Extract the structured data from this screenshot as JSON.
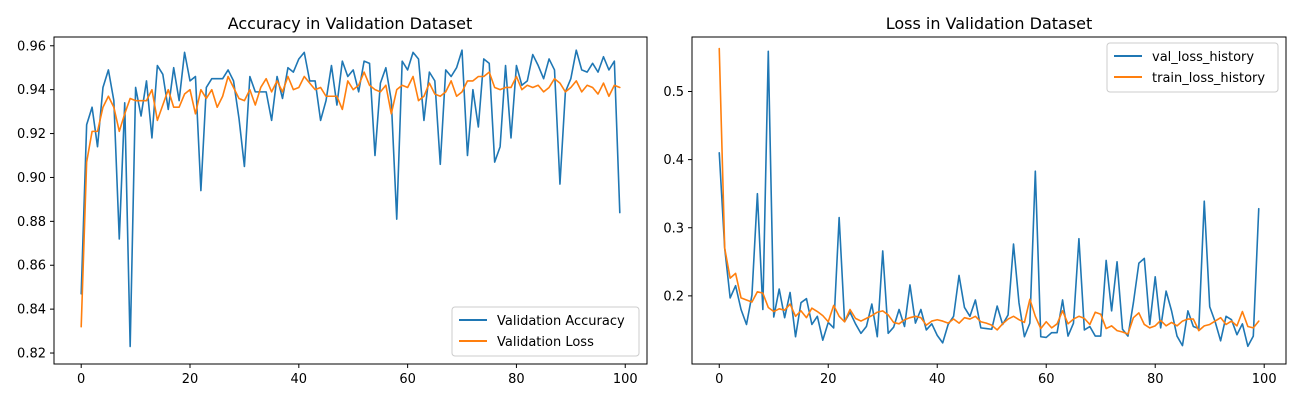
{
  "chart_data": [
    {
      "type": "line",
      "title": "Accuracy in Validation Dataset",
      "xlabel": "",
      "ylabel": "",
      "xlim": [
        -5,
        104
      ],
      "ylim": [
        0.815,
        0.964
      ],
      "xticks": [
        0,
        20,
        40,
        60,
        80,
        100
      ],
      "xtick_labels": [
        "0",
        "20",
        "40",
        "60",
        "80",
        "100"
      ],
      "yticks": [
        0.82,
        0.84,
        0.86,
        0.88,
        0.9,
        0.92,
        0.94,
        0.96
      ],
      "ytick_labels": [
        "0.82",
        "0.84",
        "0.86",
        "0.88",
        "0.90",
        "0.92",
        "0.94",
        "0.96"
      ],
      "grid": false,
      "legend_position": "lower-right",
      "series": [
        {
          "name": "Validation Accuracy",
          "color": "#1f77b4",
          "x": [
            0,
            1,
            2,
            3,
            4,
            5,
            6,
            7,
            8,
            9,
            10,
            11,
            12,
            13,
            14,
            15,
            16,
            17,
            18,
            19,
            20,
            21,
            22,
            23,
            24,
            25,
            26,
            27,
            28,
            29,
            30,
            31,
            32,
            33,
            34,
            35,
            36,
            37,
            38,
            39,
            40,
            41,
            42,
            43,
            44,
            45,
            46,
            47,
            48,
            49,
            50,
            51,
            52,
            53,
            54,
            55,
            56,
            57,
            58,
            59,
            60,
            61,
            62,
            63,
            64,
            65,
            66,
            67,
            68,
            69,
            70,
            71,
            72,
            73,
            74,
            75,
            76,
            77,
            78,
            79,
            80,
            81,
            82,
            83,
            84,
            85,
            86,
            87,
            88,
            89,
            90,
            91,
            92,
            93,
            94,
            95,
            96,
            97,
            98,
            99
          ],
          "values": [
            0.847,
            0.924,
            0.932,
            0.914,
            0.941,
            0.949,
            0.935,
            0.872,
            0.934,
            0.823,
            0.941,
            0.928,
            0.944,
            0.918,
            0.951,
            0.947,
            0.931,
            0.95,
            0.935,
            0.957,
            0.944,
            0.946,
            0.894,
            0.941,
            0.945,
            0.945,
            0.945,
            0.949,
            0.944,
            0.927,
            0.905,
            0.946,
            0.939,
            0.939,
            0.939,
            0.926,
            0.946,
            0.936,
            0.95,
            0.948,
            0.954,
            0.957,
            0.944,
            0.944,
            0.926,
            0.935,
            0.951,
            0.933,
            0.953,
            0.946,
            0.949,
            0.939,
            0.953,
            0.952,
            0.91,
            0.943,
            0.95,
            0.935,
            0.881,
            0.953,
            0.949,
            0.957,
            0.954,
            0.926,
            0.948,
            0.944,
            0.906,
            0.949,
            0.946,
            0.95,
            0.958,
            0.91,
            0.94,
            0.923,
            0.954,
            0.952,
            0.907,
            0.914,
            0.951,
            0.918,
            0.951,
            0.942,
            0.944,
            0.956,
            0.951,
            0.945,
            0.954,
            0.949,
            0.897,
            0.939,
            0.945,
            0.958,
            0.949,
            0.948,
            0.952,
            0.948,
            0.955,
            0.949,
            0.953,
            0.884
          ]
        },
        {
          "name": "Validation Loss",
          "color": "#ff7f0e",
          "x": [
            0,
            1,
            2,
            3,
            4,
            5,
            6,
            7,
            8,
            9,
            10,
            11,
            12,
            13,
            14,
            15,
            16,
            17,
            18,
            19,
            20,
            21,
            22,
            23,
            24,
            25,
            26,
            27,
            28,
            29,
            30,
            31,
            32,
            33,
            34,
            35,
            36,
            37,
            38,
            39,
            40,
            41,
            42,
            43,
            44,
            45,
            46,
            47,
            48,
            49,
            50,
            51,
            52,
            53,
            54,
            55,
            56,
            57,
            58,
            59,
            60,
            61,
            62,
            63,
            64,
            65,
            66,
            67,
            68,
            69,
            70,
            71,
            72,
            73,
            74,
            75,
            76,
            77,
            78,
            79,
            80,
            81,
            82,
            83,
            84,
            85,
            86,
            87,
            88,
            89,
            90,
            91,
            92,
            93,
            94,
            95,
            96,
            97,
            98,
            99
          ],
          "values": [
            0.832,
            0.907,
            0.921,
            0.921,
            0.932,
            0.937,
            0.932,
            0.921,
            0.929,
            0.936,
            0.935,
            0.935,
            0.935,
            0.94,
            0.926,
            0.933,
            0.94,
            0.932,
            0.932,
            0.938,
            0.94,
            0.929,
            0.94,
            0.936,
            0.94,
            0.932,
            0.937,
            0.946,
            0.941,
            0.936,
            0.935,
            0.94,
            0.933,
            0.941,
            0.945,
            0.939,
            0.944,
            0.939,
            0.946,
            0.94,
            0.941,
            0.946,
            0.943,
            0.94,
            0.941,
            0.937,
            0.937,
            0.937,
            0.931,
            0.944,
            0.94,
            0.942,
            0.948,
            0.942,
            0.94,
            0.939,
            0.942,
            0.929,
            0.94,
            0.942,
            0.941,
            0.946,
            0.935,
            0.937,
            0.943,
            0.938,
            0.937,
            0.939,
            0.944,
            0.937,
            0.939,
            0.944,
            0.944,
            0.946,
            0.946,
            0.948,
            0.941,
            0.94,
            0.941,
            0.941,
            0.946,
            0.94,
            0.942,
            0.941,
            0.942,
            0.939,
            0.941,
            0.945,
            0.943,
            0.939,
            0.941,
            0.944,
            0.939,
            0.942,
            0.941,
            0.938,
            0.943,
            0.937,
            0.942,
            0.941
          ]
        }
      ]
    },
    {
      "type": "line",
      "title": "Loss in Validation Dataset",
      "xlabel": "",
      "ylabel": "",
      "xlim": [
        -5,
        104
      ],
      "ylim": [
        0.1,
        0.58
      ],
      "xticks": [
        0,
        20,
        40,
        60,
        80,
        100
      ],
      "xtick_labels": [
        "0",
        "20",
        "40",
        "60",
        "80",
        "100"
      ],
      "yticks": [
        0.2,
        0.3,
        0.4,
        0.5
      ],
      "ytick_labels": [
        "0.2",
        "0.3",
        "0.4",
        "0.5"
      ],
      "grid": false,
      "legend_position": "top-right",
      "series": [
        {
          "name": "val_loss_history",
          "color": "#1f77b4",
          "x": [
            0,
            1,
            2,
            3,
            4,
            5,
            6,
            7,
            8,
            9,
            10,
            11,
            12,
            13,
            14,
            15,
            16,
            17,
            18,
            19,
            20,
            21,
            22,
            23,
            24,
            25,
            26,
            27,
            28,
            29,
            30,
            31,
            32,
            33,
            34,
            35,
            36,
            37,
            38,
            39,
            40,
            41,
            42,
            43,
            44,
            45,
            46,
            47,
            48,
            49,
            50,
            51,
            52,
            53,
            54,
            55,
            56,
            57,
            58,
            59,
            60,
            61,
            62,
            63,
            64,
            65,
            66,
            67,
            68,
            69,
            70,
            71,
            72,
            73,
            74,
            75,
            76,
            77,
            78,
            79,
            80,
            81,
            82,
            83,
            84,
            85,
            86,
            87,
            88,
            89,
            90,
            91,
            92,
            93,
            94,
            95,
            96,
            97,
            98,
            99
          ],
          "values": [
            0.41,
            0.27,
            0.197,
            0.215,
            0.18,
            0.158,
            0.201,
            0.35,
            0.18,
            0.559,
            0.169,
            0.21,
            0.168,
            0.205,
            0.14,
            0.19,
            0.196,
            0.158,
            0.17,
            0.135,
            0.161,
            0.153,
            0.315,
            0.162,
            0.176,
            0.159,
            0.145,
            0.155,
            0.188,
            0.14,
            0.266,
            0.145,
            0.154,
            0.18,
            0.155,
            0.216,
            0.16,
            0.18,
            0.15,
            0.159,
            0.142,
            0.131,
            0.158,
            0.17,
            0.23,
            0.183,
            0.17,
            0.194,
            0.153,
            0.152,
            0.151,
            0.185,
            0.158,
            0.172,
            0.276,
            0.19,
            0.14,
            0.16,
            0.383,
            0.14,
            0.139,
            0.146,
            0.146,
            0.194,
            0.141,
            0.16,
            0.284,
            0.15,
            0.155,
            0.141,
            0.141,
            0.252,
            0.178,
            0.25,
            0.151,
            0.141,
            0.19,
            0.248,
            0.255,
            0.158,
            0.228,
            0.153,
            0.207,
            0.178,
            0.141,
            0.127,
            0.178,
            0.155,
            0.152,
            0.339,
            0.184,
            0.162,
            0.134,
            0.17,
            0.165,
            0.143,
            0.159,
            0.126,
            0.141,
            0.328
          ]
        },
        {
          "name": "train_loss_history",
          "color": "#ff7f0e",
          "x": [
            0,
            1,
            2,
            3,
            4,
            5,
            6,
            7,
            8,
            9,
            10,
            11,
            12,
            13,
            14,
            15,
            16,
            17,
            18,
            19,
            20,
            21,
            22,
            23,
            24,
            25,
            26,
            27,
            28,
            29,
            30,
            31,
            32,
            33,
            34,
            35,
            36,
            37,
            38,
            39,
            40,
            41,
            42,
            43,
            44,
            45,
            46,
            47,
            48,
            49,
            50,
            51,
            52,
            53,
            54,
            55,
            56,
            57,
            58,
            59,
            60,
            61,
            62,
            63,
            64,
            65,
            66,
            67,
            68,
            69,
            70,
            71,
            72,
            73,
            74,
            75,
            76,
            77,
            78,
            79,
            80,
            81,
            82,
            83,
            84,
            85,
            86,
            87,
            88,
            89,
            90,
            91,
            92,
            93,
            94,
            95,
            96,
            97,
            98,
            99
          ],
          "values": [
            0.563,
            0.27,
            0.226,
            0.233,
            0.197,
            0.194,
            0.191,
            0.206,
            0.204,
            0.183,
            0.177,
            0.181,
            0.179,
            0.188,
            0.17,
            0.178,
            0.168,
            0.182,
            0.177,
            0.171,
            0.162,
            0.186,
            0.17,
            0.162,
            0.18,
            0.167,
            0.163,
            0.167,
            0.171,
            0.176,
            0.178,
            0.172,
            0.161,
            0.159,
            0.165,
            0.168,
            0.17,
            0.168,
            0.157,
            0.163,
            0.165,
            0.163,
            0.16,
            0.166,
            0.16,
            0.168,
            0.166,
            0.17,
            0.162,
            0.16,
            0.157,
            0.15,
            0.159,
            0.166,
            0.17,
            0.165,
            0.161,
            0.195,
            0.17,
            0.152,
            0.162,
            0.153,
            0.159,
            0.178,
            0.159,
            0.166,
            0.17,
            0.167,
            0.158,
            0.176,
            0.173,
            0.152,
            0.156,
            0.149,
            0.147,
            0.144,
            0.168,
            0.175,
            0.158,
            0.153,
            0.156,
            0.164,
            0.156,
            0.161,
            0.156,
            0.163,
            0.166,
            0.166,
            0.149,
            0.156,
            0.158,
            0.163,
            0.168,
            0.158,
            0.163,
            0.156,
            0.177,
            0.155,
            0.153,
            0.163
          ]
        }
      ]
    }
  ]
}
